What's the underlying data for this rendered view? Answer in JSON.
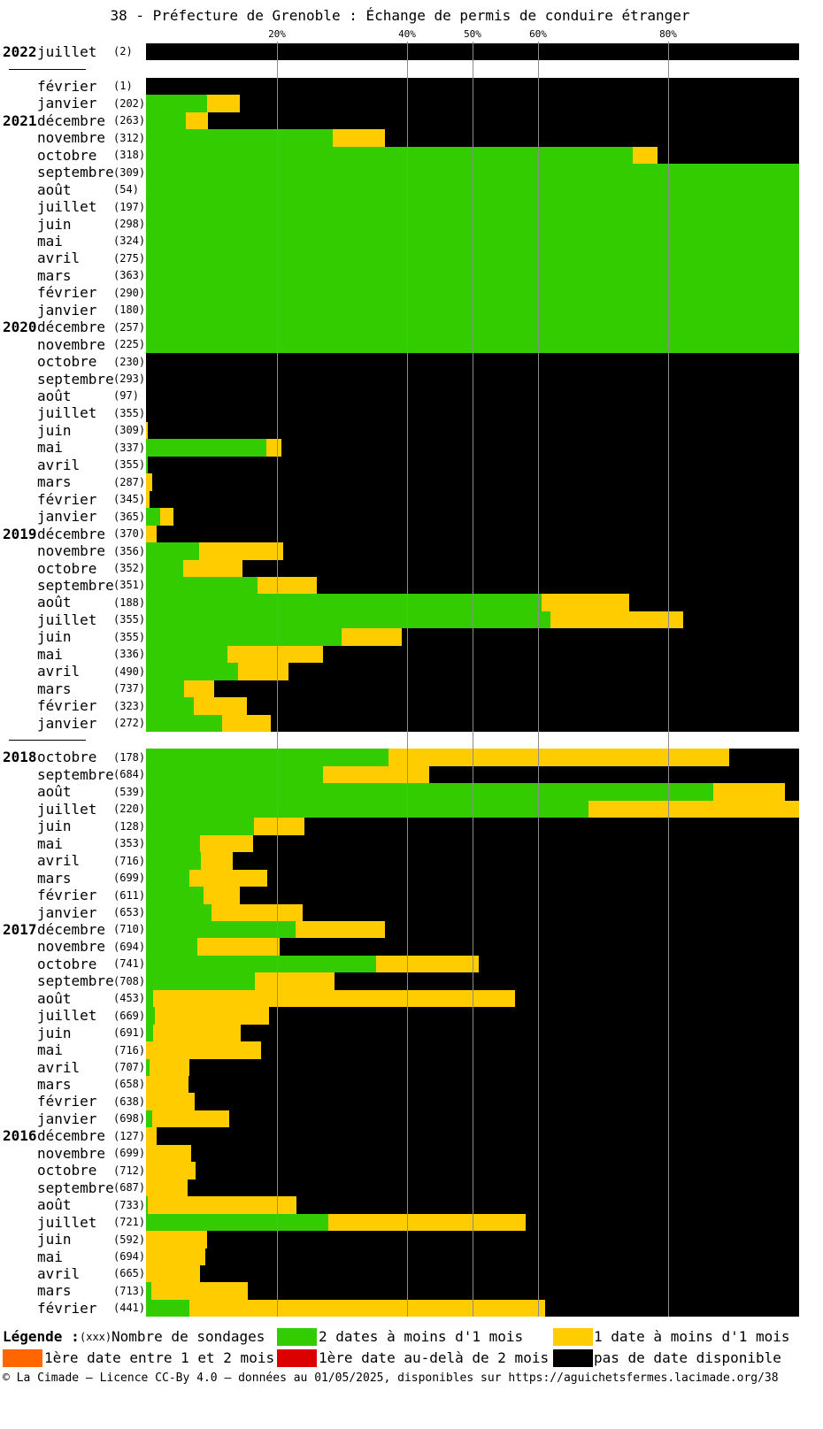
{
  "chart_data": {
    "type": "bar",
    "orientation": "horizontal",
    "stacked": true,
    "title": "38 - Préfecture de Grenoble : Échange de permis de conduire étranger",
    "xlim": [
      0,
      100
    ],
    "xticks": [
      {
        "value": 20,
        "label": "20%"
      },
      {
        "value": 40,
        "label": "40%"
      },
      {
        "value": 50,
        "label": "50%"
      },
      {
        "value": 60,
        "label": "60%"
      },
      {
        "value": 80,
        "label": "80%"
      }
    ],
    "grid": true,
    "legend_position": "bottom",
    "series": [
      {
        "name": "2 dates à moins d'1 mois",
        "color": "#33cc00"
      },
      {
        "name": "1 date à moins d'1 mois",
        "color": "#ffcc00"
      },
      {
        "name": "1ère date entre 1 et 2 mois",
        "color": "#ff6600"
      },
      {
        "name": "1ère date au-delà de 2 mois",
        "color": "#dd0000"
      },
      {
        "name": "pas de date disponible",
        "color": "#000000"
      }
    ],
    "groups": [
      {
        "rows": [
          {
            "year": "2022",
            "month": "juillet",
            "count": 2,
            "values": [
              0,
              0,
              0,
              0,
              100
            ]
          }
        ]
      },
      {
        "rows": [
          {
            "month": "février",
            "count": 1,
            "values": [
              0,
              0,
              0,
              0,
              100
            ]
          },
          {
            "month": "janvier",
            "count": 202,
            "values": [
              9.4,
              5.0,
              0,
              0,
              85.6
            ]
          },
          {
            "year": "2021",
            "month": "décembre",
            "count": 263,
            "values": [
              6.1,
              3.4,
              0,
              0,
              90.5
            ]
          },
          {
            "month": "novembre",
            "count": 312,
            "values": [
              28.6,
              8.0,
              0,
              0,
              63.4
            ]
          },
          {
            "month": "octobre",
            "count": 318,
            "values": [
              74.5,
              3.8,
              0,
              0,
              21.7
            ]
          },
          {
            "month": "septembre",
            "count": 309,
            "values": [
              100,
              0,
              0,
              0,
              0
            ]
          },
          {
            "month": "août",
            "count": 54,
            "values": [
              100,
              0,
              0,
              0,
              0
            ]
          },
          {
            "month": "juillet",
            "count": 197,
            "values": [
              100,
              0,
              0,
              0,
              0
            ]
          },
          {
            "month": "juin",
            "count": 298,
            "values": [
              100,
              0,
              0,
              0,
              0
            ]
          },
          {
            "month": "mai",
            "count": 324,
            "values": [
              100,
              0,
              0,
              0,
              0
            ]
          },
          {
            "month": "avril",
            "count": 275,
            "values": [
              100,
              0,
              0,
              0,
              0
            ]
          },
          {
            "month": "mars",
            "count": 363,
            "values": [
              100,
              0,
              0,
              0,
              0
            ]
          },
          {
            "month": "février",
            "count": 290,
            "values": [
              100,
              0,
              0,
              0,
              0
            ]
          },
          {
            "month": "janvier",
            "count": 180,
            "values": [
              100,
              0,
              0,
              0,
              0
            ]
          },
          {
            "year": "2020",
            "month": "décembre",
            "count": 257,
            "values": [
              100,
              0,
              0,
              0,
              0
            ]
          },
          {
            "month": "novembre",
            "count": 225,
            "values": [
              100,
              0,
              0,
              0,
              0
            ]
          },
          {
            "month": "octobre",
            "count": 230,
            "values": [
              0,
              0,
              0,
              0,
              100
            ]
          },
          {
            "month": "septembre",
            "count": 293,
            "values": [
              0,
              0,
              0,
              0,
              100
            ]
          },
          {
            "month": "août",
            "count": 97,
            "values": [
              0,
              0,
              0,
              0,
              100
            ]
          },
          {
            "month": "juillet",
            "count": 355,
            "values": [
              0,
              0,
              0,
              0,
              100
            ]
          },
          {
            "month": "juin",
            "count": 309,
            "values": [
              0,
              0.3,
              0,
              0,
              99.7
            ]
          },
          {
            "month": "mai",
            "count": 337,
            "values": [
              18.4,
              2.3,
              0,
              0,
              79.3
            ]
          },
          {
            "month": "avril",
            "count": 355,
            "values": [
              0.3,
              0,
              0,
              0,
              99.7
            ]
          },
          {
            "month": "mars",
            "count": 287,
            "values": [
              0,
              0.9,
              0,
              0,
              99.1
            ]
          },
          {
            "month": "février",
            "count": 345,
            "values": [
              0,
              0.5,
              0,
              0,
              99.5
            ]
          },
          {
            "month": "janvier",
            "count": 365,
            "values": [
              2.2,
              2.0,
              0,
              0,
              95.8
            ]
          },
          {
            "year": "2019",
            "month": "décembre",
            "count": 370,
            "values": [
              0,
              1.6,
              0,
              0,
              98.4
            ]
          },
          {
            "month": "novembre",
            "count": 356,
            "values": [
              8.1,
              12.9,
              0,
              0,
              79.0
            ]
          },
          {
            "month": "octobre",
            "count": 352,
            "values": [
              5.7,
              9.1,
              0,
              0,
              85.2
            ]
          },
          {
            "month": "septembre",
            "count": 351,
            "values": [
              17.1,
              9.1,
              0,
              0,
              73.8
            ]
          },
          {
            "month": "août",
            "count": 188,
            "values": [
              60.6,
              13.4,
              0,
              0,
              26.0
            ]
          },
          {
            "month": "juillet",
            "count": 355,
            "values": [
              61.9,
              20.3,
              0,
              0,
              17.8
            ]
          },
          {
            "month": "juin",
            "count": 355,
            "values": [
              29.9,
              9.2,
              0,
              0,
              60.9
            ]
          },
          {
            "month": "mai",
            "count": 336,
            "values": [
              12.5,
              14.6,
              0,
              0,
              72.9
            ]
          },
          {
            "month": "avril",
            "count": 490,
            "values": [
              14.1,
              7.7,
              0,
              0,
              78.2
            ]
          },
          {
            "month": "mars",
            "count": 737,
            "values": [
              5.8,
              4.6,
              0,
              0,
              89.6
            ]
          },
          {
            "month": "février",
            "count": 323,
            "values": [
              7.3,
              8.1,
              0,
              0,
              84.6
            ]
          },
          {
            "month": "janvier",
            "count": 272,
            "values": [
              11.7,
              7.4,
              0,
              0,
              80.9
            ]
          }
        ]
      },
      {
        "rows": [
          {
            "year": "2018",
            "month": "octobre",
            "count": 178,
            "values": [
              37.1,
              52.2,
              0,
              0,
              10.7
            ]
          },
          {
            "month": "septembre",
            "count": 684,
            "values": [
              27.1,
              16.3,
              0,
              0,
              56.6
            ]
          },
          {
            "month": "août",
            "count": 539,
            "values": [
              86.9,
              11.0,
              0,
              0,
              2.1
            ]
          },
          {
            "month": "juillet",
            "count": 220,
            "values": [
              67.8,
              32.2,
              0,
              0,
              0
            ]
          },
          {
            "month": "juin",
            "count": 128,
            "values": [
              16.5,
              7.7,
              0,
              0,
              75.8
            ]
          },
          {
            "month": "mai",
            "count": 353,
            "values": [
              8.3,
              8.1,
              0,
              0,
              83.6
            ]
          },
          {
            "month": "avril",
            "count": 716,
            "values": [
              8.4,
              4.9,
              0,
              0,
              86.7
            ]
          },
          {
            "month": "mars",
            "count": 699,
            "values": [
              6.6,
              11.9,
              0,
              0,
              81.5
            ]
          },
          {
            "month": "février",
            "count": 611,
            "values": [
              8.8,
              5.6,
              0,
              0,
              85.6
            ]
          },
          {
            "month": "janvier",
            "count": 653,
            "values": [
              10.0,
              14.0,
              0,
              0,
              76.0
            ]
          },
          {
            "year": "2017",
            "month": "décembre",
            "count": 710,
            "values": [
              22.9,
              13.7,
              0,
              0,
              63.4
            ]
          },
          {
            "month": "novembre",
            "count": 694,
            "values": [
              7.9,
              12.6,
              0,
              0,
              79.5
            ]
          },
          {
            "month": "octobre",
            "count": 741,
            "values": [
              35.2,
              15.7,
              0,
              0,
              49.1
            ]
          },
          {
            "month": "septembre",
            "count": 708,
            "values": [
              16.7,
              12.1,
              0,
              0,
              71.2
            ]
          },
          {
            "month": "août",
            "count": 453,
            "values": [
              1.1,
              55.4,
              0,
              0,
              43.5
            ]
          },
          {
            "month": "juillet",
            "count": 669,
            "values": [
              1.4,
              17.5,
              0,
              0,
              81.1
            ]
          },
          {
            "month": "juin",
            "count": 691,
            "values": [
              1.1,
              13.4,
              0,
              0,
              85.5
            ]
          },
          {
            "month": "mai",
            "count": 716,
            "values": [
              0,
              17.6,
              0,
              0,
              82.4
            ]
          },
          {
            "month": "avril",
            "count": 707,
            "values": [
              0.5,
              6.1,
              0,
              0,
              93.4
            ]
          },
          {
            "month": "mars",
            "count": 658,
            "values": [
              0,
              6.5,
              0,
              0,
              93.5
            ]
          },
          {
            "month": "février",
            "count": 638,
            "values": [
              0,
              7.5,
              0,
              0,
              92.5
            ]
          },
          {
            "month": "janvier",
            "count": 698,
            "values": [
              0.9,
              11.8,
              0,
              0,
              87.3
            ]
          },
          {
            "year": "2016",
            "month": "décembre",
            "count": 127,
            "values": [
              0,
              1.6,
              0,
              0,
              98.4
            ]
          },
          {
            "month": "novembre",
            "count": 699,
            "values": [
              0,
              6.9,
              0,
              0,
              93.1
            ]
          },
          {
            "month": "octobre",
            "count": 712,
            "values": [
              0,
              7.6,
              0,
              0,
              92.4
            ]
          },
          {
            "month": "septembre",
            "count": 687,
            "values": [
              0,
              6.4,
              0,
              0,
              93.6
            ]
          },
          {
            "month": "août",
            "count": 733,
            "values": [
              0.3,
              22.8,
              0,
              0,
              76.9
            ]
          },
          {
            "month": "juillet",
            "count": 721,
            "values": [
              27.9,
              30.2,
              0,
              0,
              41.9
            ]
          },
          {
            "month": "juin",
            "count": 592,
            "values": [
              0,
              9.3,
              0,
              0,
              90.7
            ]
          },
          {
            "month": "mai",
            "count": 694,
            "values": [
              0,
              9.1,
              0,
              0,
              90.9
            ]
          },
          {
            "month": "avril",
            "count": 665,
            "values": [
              0,
              8.3,
              0,
              0,
              91.7
            ]
          },
          {
            "month": "mars",
            "count": 713,
            "values": [
              0.8,
              14.8,
              0,
              0,
              84.4
            ]
          },
          {
            "month": "février",
            "count": 441,
            "values": [
              6.6,
              54.5,
              0,
              0,
              38.9
            ]
          }
        ]
      }
    ]
  },
  "legend": {
    "title": "Légende :",
    "count_sample": "(xxx)",
    "count_label": "Nombre de sondages"
  },
  "footer": "© La Cimade – Licence CC-By 4.0 – données au 01/05/2025, disponibles sur https://aguichetsfermes.lacimade.org/38"
}
